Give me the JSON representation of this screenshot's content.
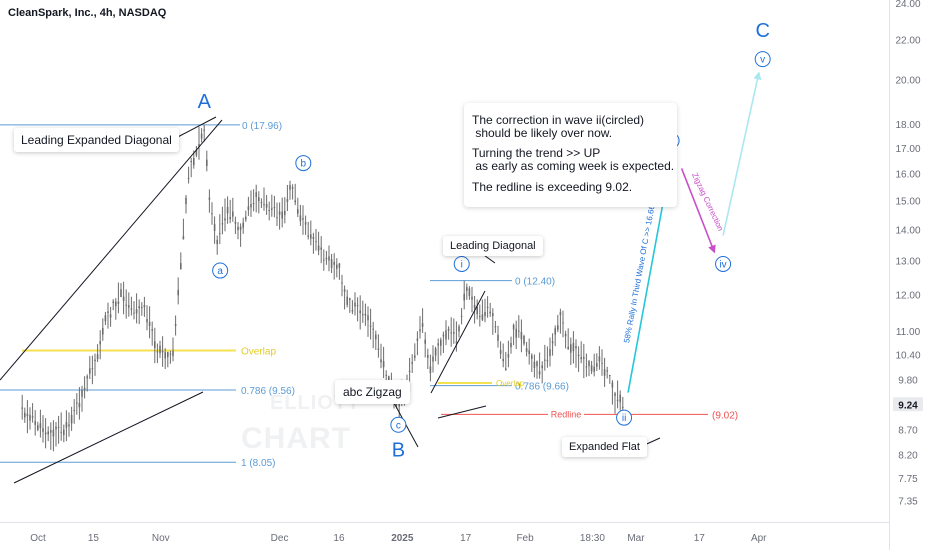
{
  "header": {
    "title": "CleanSpark, Inc., 4h, NASDAQ"
  },
  "watermark": {
    "line1": "ELLIOTT",
    "line2": "CHART"
  },
  "note": {
    "line1": "The correction in wave ii(circled)",
    "line2": " should be likely over now.",
    "line3": "Turning the trend >> UP",
    "line4": " as early as coming week is expected.",
    "line5": "The redline is exceeding 9.02."
  },
  "labels": {
    "leading_expanded_diagonal": "Leading Expanded Diagonal",
    "abc_zigzag": "abc Zigzag",
    "leading_diagonal": "Leading Diagonal",
    "expanded_flat": "Expanded Flat",
    "redline": "Redline",
    "redline_value": "(9.02)",
    "overlap": "Overlap",
    "overlap_small": "Overlap",
    "fib_0": "0 (17.96)",
    "fib_786": "0.786 (9.56)",
    "fib_1": "1 (8.05)",
    "fib2_0": "0 (12.40)",
    "fib2_786": "0.786 (9.66)",
    "rally": "58% Rally In Third Wave Of C >> 16.66",
    "zigzag_corr": "Zigzag Correction"
  },
  "price_axis": {
    "current_price": "9.24"
  },
  "colors": {
    "wave_blue": "#1e6fd9",
    "cyan_arrow": "#26c6da",
    "light_cyan_arrow": "#a9e8ef",
    "magenta_arrow": "#c94fc9",
    "redline": "#ef5350",
    "fib_blue": "#5b9bd5",
    "overlap_yellow": "#f5e050",
    "candle": "#6b6b6b"
  },
  "chart_data": {
    "type": "candlestick",
    "title": "CleanSpark, Inc., 4h, NASDAQ",
    "scale": "log",
    "y_ticks": [
      24.0,
      22.0,
      20.0,
      18.0,
      17.0,
      16.0,
      15.0,
      14.0,
      13.0,
      12.0,
      11.0,
      10.4,
      9.8,
      8.7,
      8.2,
      7.75,
      7.35
    ],
    "ylim": [
      7.1,
      24.0
    ],
    "x_ticks": [
      "Oct",
      "15",
      "Nov",
      "Dec",
      "16",
      "2025",
      "17",
      "Feb",
      "18:30",
      "Mar",
      "17",
      "Apr"
    ],
    "current_price": 9.24,
    "price_path": [
      {
        "d": "2024-09-27",
        "p": 9.1
      },
      {
        "d": "2024-10-01",
        "p": 8.8
      },
      {
        "d": "2024-10-04",
        "p": 8.6
      },
      {
        "d": "2024-10-08",
        "p": 8.7
      },
      {
        "d": "2024-10-11",
        "p": 9.2
      },
      {
        "d": "2024-10-16",
        "p": 10.4
      },
      {
        "d": "2024-10-18",
        "p": 11.3
      },
      {
        "d": "2024-10-22",
        "p": 12.0
      },
      {
        "d": "2024-10-24",
        "p": 11.5
      },
      {
        "d": "2024-10-28",
        "p": 11.6
      },
      {
        "d": "2024-10-31",
        "p": 10.5
      },
      {
        "d": "2024-11-04",
        "p": 10.3
      },
      {
        "d": "2024-11-06",
        "p": 12.8
      },
      {
        "d": "2024-11-08",
        "p": 16.0
      },
      {
        "d": "2024-11-12",
        "p": 17.8
      },
      {
        "d": "2024-11-13",
        "p": 15.5
      },
      {
        "d": "2024-11-15",
        "p": 13.6
      },
      {
        "d": "2024-11-18",
        "p": 14.7
      },
      {
        "d": "2024-11-21",
        "p": 14.0
      },
      {
        "d": "2024-11-25",
        "p": 15.2
      },
      {
        "d": "2024-11-27",
        "p": 14.8
      },
      {
        "d": "2024-12-02",
        "p": 14.5
      },
      {
        "d": "2024-12-04",
        "p": 15.6
      },
      {
        "d": "2024-12-06",
        "p": 14.5
      },
      {
        "d": "2024-12-09",
        "p": 13.8
      },
      {
        "d": "2024-12-12",
        "p": 13.2
      },
      {
        "d": "2024-12-16",
        "p": 12.8
      },
      {
        "d": "2024-12-18",
        "p": 11.8
      },
      {
        "d": "2024-12-20",
        "p": 11.6
      },
      {
        "d": "2024-12-24",
        "p": 11.2
      },
      {
        "d": "2024-12-27",
        "p": 10.2
      },
      {
        "d": "2024-12-31",
        "p": 9.2
      },
      {
        "d": "2025-01-02",
        "p": 9.6
      },
      {
        "d": "2025-01-06",
        "p": 11.3
      },
      {
        "d": "2025-01-08",
        "p": 10.0
      },
      {
        "d": "2025-01-10",
        "p": 10.6
      },
      {
        "d": "2025-01-13",
        "p": 11.0
      },
      {
        "d": "2025-01-15",
        "p": 10.8
      },
      {
        "d": "2025-01-17",
        "p": 12.2
      },
      {
        "d": "2025-01-21",
        "p": 11.3
      },
      {
        "d": "2025-01-23",
        "p": 11.7
      },
      {
        "d": "2025-01-27",
        "p": 10.1
      },
      {
        "d": "2025-01-29",
        "p": 11.0
      },
      {
        "d": "2025-01-31",
        "p": 10.9
      },
      {
        "d": "2025-02-03",
        "p": 10.2
      },
      {
        "d": "2025-02-05",
        "p": 10.0
      },
      {
        "d": "2025-02-07",
        "p": 10.4
      },
      {
        "d": "2025-02-10",
        "p": 11.4
      },
      {
        "d": "2025-02-12",
        "p": 10.6
      },
      {
        "d": "2025-02-14",
        "p": 10.5
      },
      {
        "d": "2025-02-18",
        "p": 10.0
      },
      {
        "d": "2025-02-20",
        "p": 10.3
      },
      {
        "d": "2025-02-24",
        "p": 9.4
      },
      {
        "d": "2025-02-26",
        "p": 9.24
      }
    ],
    "wave_labels": [
      {
        "text": "A",
        "d": "2024-11-12",
        "p": 19.0,
        "style": "big"
      },
      {
        "text": "b",
        "d": "2024-12-07",
        "p": 16.4,
        "style": "circle"
      },
      {
        "text": "a",
        "d": "2024-11-16",
        "p": 12.7,
        "style": "circle"
      },
      {
        "text": "c",
        "d": "2024-12-31",
        "p": 8.8,
        "style": "circle"
      },
      {
        "text": "B",
        "d": "2024-12-31",
        "p": 8.3,
        "style": "big"
      },
      {
        "text": "i",
        "d": "2025-01-16",
        "p": 12.9,
        "style": "circle"
      },
      {
        "text": "ii",
        "d": "2025-02-26",
        "p": 8.95,
        "style": "circle"
      },
      {
        "text": "iii",
        "d": "2025-03-10",
        "p": 17.3,
        "style": "circle"
      },
      {
        "text": "iv",
        "d": "2025-03-23",
        "p": 12.9,
        "style": "circle"
      },
      {
        "text": "v",
        "d": "2025-04-02",
        "p": 21.0,
        "style": "circle"
      },
      {
        "text": "C",
        "d": "2025-04-02",
        "p": 22.5,
        "style": "big"
      }
    ],
    "levels": [
      {
        "name": "fib_0",
        "value": 17.96
      },
      {
        "name": "fib_786",
        "value": 9.56
      },
      {
        "name": "fib_1",
        "value": 8.05
      },
      {
        "name": "fib2_0",
        "value": 12.4
      },
      {
        "name": "fib2_786",
        "value": 9.66
      },
      {
        "name": "redline",
        "value": 9.02
      },
      {
        "name": "overlap",
        "value": 10.5
      },
      {
        "name": "overlap_small",
        "value": 9.72
      }
    ],
    "projection": [
      {
        "d": "2025-02-27",
        "p": 9.5
      },
      {
        "d": "2025-03-10",
        "p": 16.66
      },
      {
        "d": "2025-03-22",
        "p": 13.1
      },
      {
        "d": "2025-04-01",
        "p": 20.3
      }
    ]
  }
}
